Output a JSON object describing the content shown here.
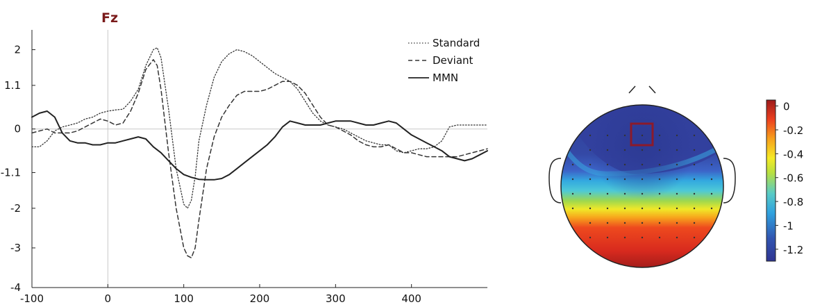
{
  "chart_data": [
    {
      "type": "line",
      "title": "Fz",
      "title_color": "#7a1a1a",
      "xlabel": "",
      "ylabel": "",
      "xlim": [
        -100,
        500
      ],
      "ylim": [
        -4,
        2.5
      ],
      "xticks": [
        -100,
        0,
        100,
        200,
        300,
        400
      ],
      "yticks": [
        2,
        1.1,
        0,
        -1.1,
        -2,
        -3,
        -4
      ],
      "grid": false,
      "zero_lines": true,
      "legend_position": "top-right",
      "series": [
        {
          "name": "Standard",
          "style": "dotted",
          "x": [
            -100,
            -90,
            -80,
            -70,
            -60,
            -50,
            -40,
            -30,
            -20,
            -10,
            0,
            10,
            20,
            30,
            40,
            50,
            60,
            65,
            70,
            80,
            90,
            100,
            105,
            110,
            115,
            120,
            130,
            140,
            150,
            160,
            170,
            180,
            190,
            200,
            210,
            220,
            230,
            240,
            250,
            260,
            270,
            280,
            290,
            300,
            310,
            320,
            330,
            340,
            350,
            360,
            370,
            380,
            390,
            400,
            410,
            420,
            430,
            440,
            450,
            460,
            470,
            480,
            490,
            500
          ],
          "y": [
            -0.45,
            -0.45,
            -0.3,
            -0.05,
            0.05,
            0.1,
            0.15,
            0.25,
            0.3,
            0.4,
            0.45,
            0.48,
            0.5,
            0.7,
            1.0,
            1.6,
            2.0,
            2.05,
            1.8,
            0.5,
            -1.0,
            -1.9,
            -2.0,
            -1.8,
            -1.2,
            -0.3,
            0.6,
            1.3,
            1.7,
            1.9,
            2.0,
            1.95,
            1.85,
            1.7,
            1.55,
            1.4,
            1.3,
            1.2,
            1.0,
            0.7,
            0.4,
            0.2,
            0.1,
            0.05,
            0.0,
            -0.1,
            -0.2,
            -0.3,
            -0.35,
            -0.4,
            -0.4,
            -0.55,
            -0.6,
            -0.55,
            -0.5,
            -0.5,
            -0.45,
            -0.3,
            0.05,
            0.1,
            0.1,
            0.1,
            0.1,
            0.1
          ]
        },
        {
          "name": "Deviant",
          "style": "dashed",
          "x": [
            -100,
            -90,
            -80,
            -70,
            -60,
            -50,
            -40,
            -30,
            -20,
            -10,
            0,
            10,
            20,
            30,
            40,
            50,
            60,
            65,
            70,
            80,
            90,
            100,
            105,
            110,
            115,
            120,
            130,
            140,
            150,
            160,
            170,
            180,
            190,
            200,
            210,
            220,
            230,
            240,
            250,
            260,
            270,
            280,
            290,
            300,
            310,
            320,
            330,
            340,
            350,
            360,
            370,
            380,
            390,
            400,
            410,
            420,
            430,
            440,
            450,
            460,
            470,
            480,
            490,
            500
          ],
          "y": [
            -0.1,
            -0.05,
            0.0,
            -0.1,
            -0.1,
            -0.1,
            -0.05,
            0.05,
            0.15,
            0.25,
            0.2,
            0.1,
            0.15,
            0.45,
            0.9,
            1.5,
            1.75,
            1.6,
            1.0,
            -0.6,
            -2.0,
            -3.0,
            -3.2,
            -3.25,
            -3.0,
            -2.3,
            -1.0,
            -0.2,
            0.3,
            0.6,
            0.85,
            0.95,
            0.95,
            0.95,
            1.0,
            1.1,
            1.2,
            1.2,
            1.1,
            0.9,
            0.6,
            0.3,
            0.1,
            0.05,
            -0.05,
            -0.15,
            -0.3,
            -0.4,
            -0.45,
            -0.45,
            -0.4,
            -0.5,
            -0.6,
            -0.6,
            -0.65,
            -0.7,
            -0.7,
            -0.7,
            -0.7,
            -0.7,
            -0.65,
            -0.6,
            -0.55,
            -0.5
          ]
        },
        {
          "name": "MMN",
          "style": "solid",
          "x": [
            -100,
            -90,
            -80,
            -70,
            -60,
            -50,
            -40,
            -30,
            -20,
            -10,
            0,
            10,
            20,
            30,
            40,
            50,
            60,
            70,
            80,
            90,
            100,
            110,
            120,
            130,
            140,
            150,
            160,
            170,
            180,
            190,
            200,
            210,
            220,
            230,
            240,
            250,
            260,
            270,
            280,
            290,
            300,
            310,
            320,
            330,
            340,
            350,
            360,
            370,
            380,
            390,
            400,
            410,
            420,
            430,
            440,
            450,
            460,
            470,
            480,
            490,
            500
          ],
          "y": [
            0.3,
            0.4,
            0.45,
            0.3,
            -0.1,
            -0.3,
            -0.35,
            -0.35,
            -0.4,
            -0.4,
            -0.35,
            -0.35,
            -0.3,
            -0.25,
            -0.2,
            -0.25,
            -0.45,
            -0.6,
            -0.8,
            -1.0,
            -1.15,
            -1.22,
            -1.27,
            -1.28,
            -1.28,
            -1.25,
            -1.15,
            -1.0,
            -0.85,
            -0.7,
            -0.55,
            -0.4,
            -0.2,
            0.05,
            0.2,
            0.15,
            0.1,
            0.1,
            0.1,
            0.15,
            0.2,
            0.2,
            0.2,
            0.15,
            0.1,
            0.1,
            0.15,
            0.2,
            0.15,
            0.0,
            -0.15,
            -0.25,
            -0.35,
            -0.45,
            -0.55,
            -0.7,
            -0.75,
            -0.8,
            -0.75,
            -0.65,
            -0.55
          ]
        }
      ]
    },
    {
      "type": "heatmap",
      "title": "",
      "colorbar_ticks": [
        0,
        -0.2,
        -0.4,
        -0.6,
        -0.8,
        -1,
        -1.2
      ],
      "colorbar_range": [
        -1.3,
        0.05
      ],
      "highlight_electrode": "Fz",
      "highlight_color": "#8b1a2b"
    }
  ]
}
